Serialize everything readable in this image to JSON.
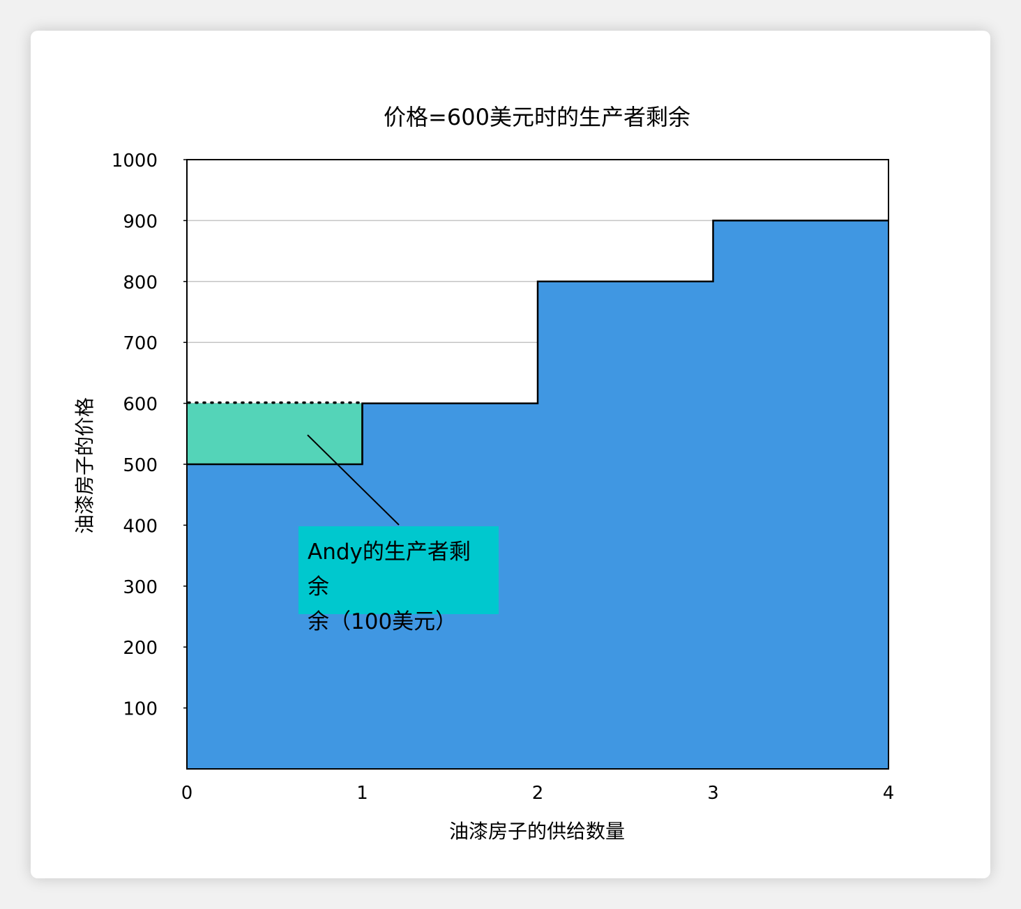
{
  "chart_data": {
    "type": "area",
    "title": "价格=600美元时的生产者剩余",
    "xlabel": "油漆房子的供给数量",
    "ylabel": "油漆房子的价格",
    "xlim": [
      0,
      4
    ],
    "ylim": [
      0,
      1000
    ],
    "x_ticks": [
      "0",
      "1",
      "2",
      "3",
      "4"
    ],
    "y_ticks": [
      "100",
      "200",
      "300",
      "400",
      "500",
      "600",
      "700",
      "800",
      "900",
      "1000"
    ],
    "grid": "horizontal",
    "supply_steps": [
      {
        "x_start": 0,
        "x_end": 1,
        "price": 500
      },
      {
        "x_start": 1,
        "x_end": 2,
        "price": 600
      },
      {
        "x_start": 2,
        "x_end": 3,
        "price": 800
      },
      {
        "x_start": 3,
        "x_end": 4,
        "price": 900
      }
    ],
    "market_price": 600,
    "surplus_region": {
      "x_start": 0,
      "x_end": 1,
      "y_low": 500,
      "y_high": 600
    },
    "annotation": {
      "text": "Andy的生产者剩余（100美元）",
      "line1": "Andy的生产者剩余",
      "line2": "余（100美元）"
    },
    "colors": {
      "supply_fill": "#4097e2",
      "surplus_fill": "#54d4b8",
      "annotation_bg": "#00c8ce",
      "outline": "#000000",
      "grid": "#c4c4c4"
    }
  }
}
